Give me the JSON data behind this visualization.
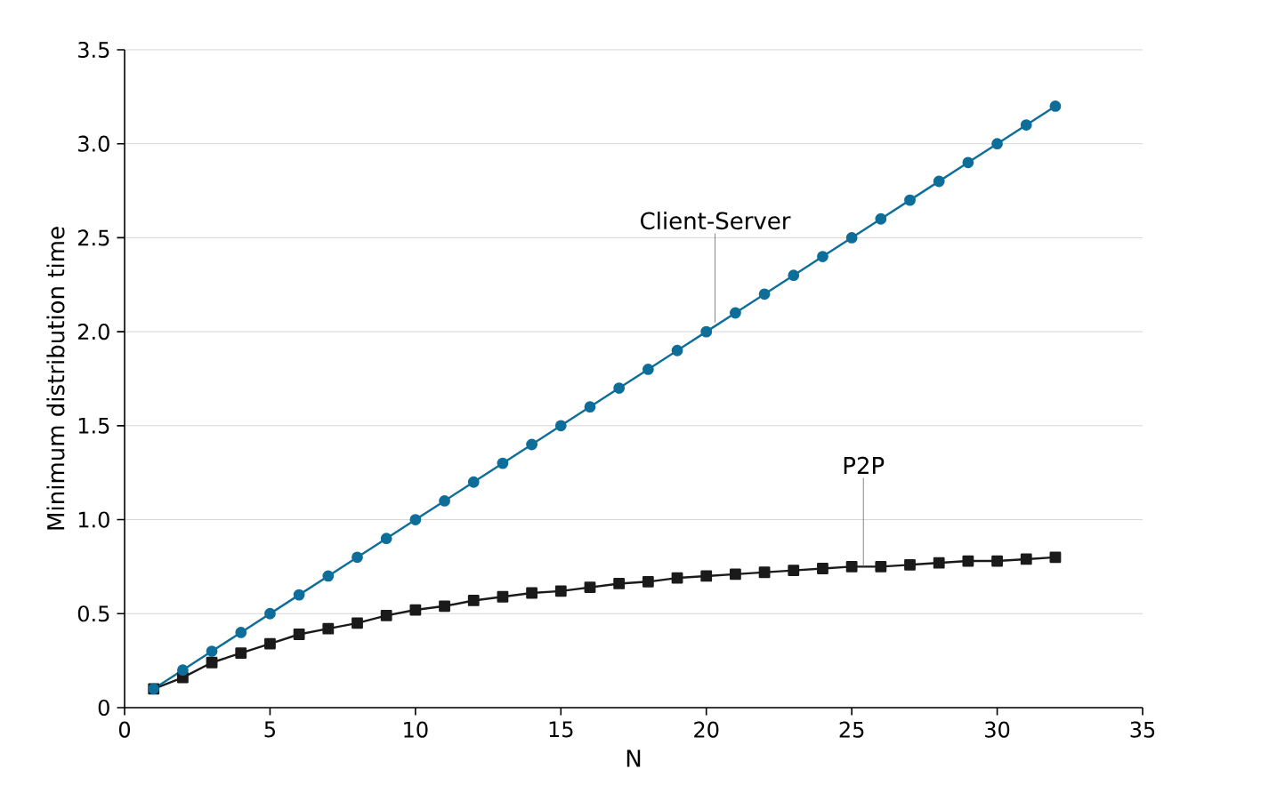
{
  "chart_data": {
    "type": "line",
    "xlabel": "N",
    "ylabel": "Minimum distribution time",
    "x": [
      1,
      2,
      3,
      4,
      5,
      6,
      7,
      8,
      9,
      10,
      11,
      12,
      13,
      14,
      15,
      16,
      17,
      18,
      19,
      20,
      21,
      22,
      23,
      24,
      25,
      26,
      27,
      28,
      29,
      30,
      31,
      32
    ],
    "series": [
      {
        "color": "#0e6e9a",
        "marker": "circle",
        "values": [
          0.1,
          0.2,
          0.3,
          0.4,
          0.5,
          0.6,
          0.7,
          0.8,
          0.9,
          1.0,
          1.1,
          1.2,
          1.3,
          1.4,
          1.5,
          1.6,
          1.7,
          1.8,
          1.9,
          2.0,
          2.1,
          2.2,
          2.3,
          2.4,
          2.5,
          2.6,
          2.7,
          2.8,
          2.9,
          3.0,
          3.1,
          3.2
        ]
      },
      {
        "color": "#1a1a1a",
        "marker": "square",
        "values": [
          0.1,
          0.16,
          0.24,
          0.29,
          0.34,
          0.39,
          0.42,
          0.45,
          0.49,
          0.52,
          0.54,
          0.57,
          0.59,
          0.61,
          0.62,
          0.64,
          0.66,
          0.67,
          0.69,
          0.7,
          0.71,
          0.72,
          0.73,
          0.74,
          0.75,
          0.75,
          0.76,
          0.77,
          0.78,
          0.78,
          0.79,
          0.8
        ]
      }
    ],
    "annotations": [
      {
        "text": "Client-Server",
        "x": 20.3,
        "y": 2.05
      },
      {
        "text": "P2P",
        "x": 25.4,
        "y": 0.75
      }
    ],
    "xlim": [
      0,
      35
    ],
    "xticks": [
      0,
      5,
      10,
      15,
      20,
      25,
      30,
      35
    ],
    "ylim": [
      0,
      3.5
    ],
    "yticks": [
      0,
      0.5,
      {
        "value": 1,
        "label": "1.0"
      },
      1.5,
      {
        "value": 2,
        "label": "2.0"
      },
      2.5,
      {
        "value": 3,
        "label": "3.0"
      },
      3.5
    ],
    "grid": "y",
    "line_style": "solid"
  }
}
